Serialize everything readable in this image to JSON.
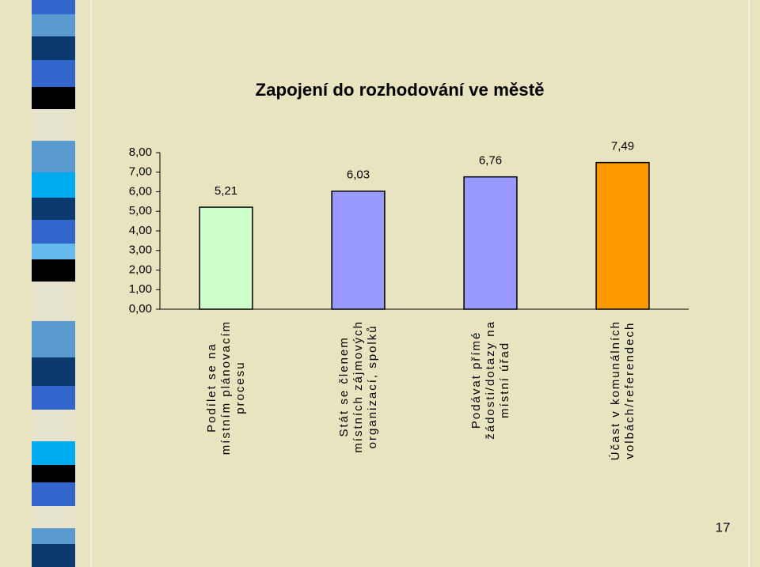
{
  "chart_data": {
    "type": "bar",
    "title": "Zapojení do rozhodování ve městě",
    "categories": [
      "Podílet se na\nmístním plánovacím\nprocesu",
      "Stát se členem\nmístních zájmových\norganizací, spolků",
      "Podávat přímé\nžádosti/dotazy na\nmístní úřad",
      "Účast v komunálních\nvolbách/referendech"
    ],
    "values": [
      5.21,
      6.03,
      6.76,
      7.49
    ],
    "value_labels": [
      "5,21",
      "6,03",
      "6,76",
      "7,49"
    ],
    "colors": [
      "#ccffcc",
      "#9999ff",
      "#9999ff",
      "#ff9900"
    ],
    "ylim": [
      0,
      8
    ],
    "yticks": [
      {
        "value": 0,
        "label": "0,00"
      },
      {
        "value": 1,
        "label": "1,00"
      },
      {
        "value": 2,
        "label": "2,00"
      },
      {
        "value": 3,
        "label": "3,00"
      },
      {
        "value": 4,
        "label": "4,00"
      },
      {
        "value": 5,
        "label": "5,00"
      },
      {
        "value": 6,
        "label": "6,00"
      },
      {
        "value": 7,
        "label": "7,00"
      },
      {
        "value": 8,
        "label": "8,00"
      }
    ],
    "grid": false
  },
  "page_number": "17"
}
